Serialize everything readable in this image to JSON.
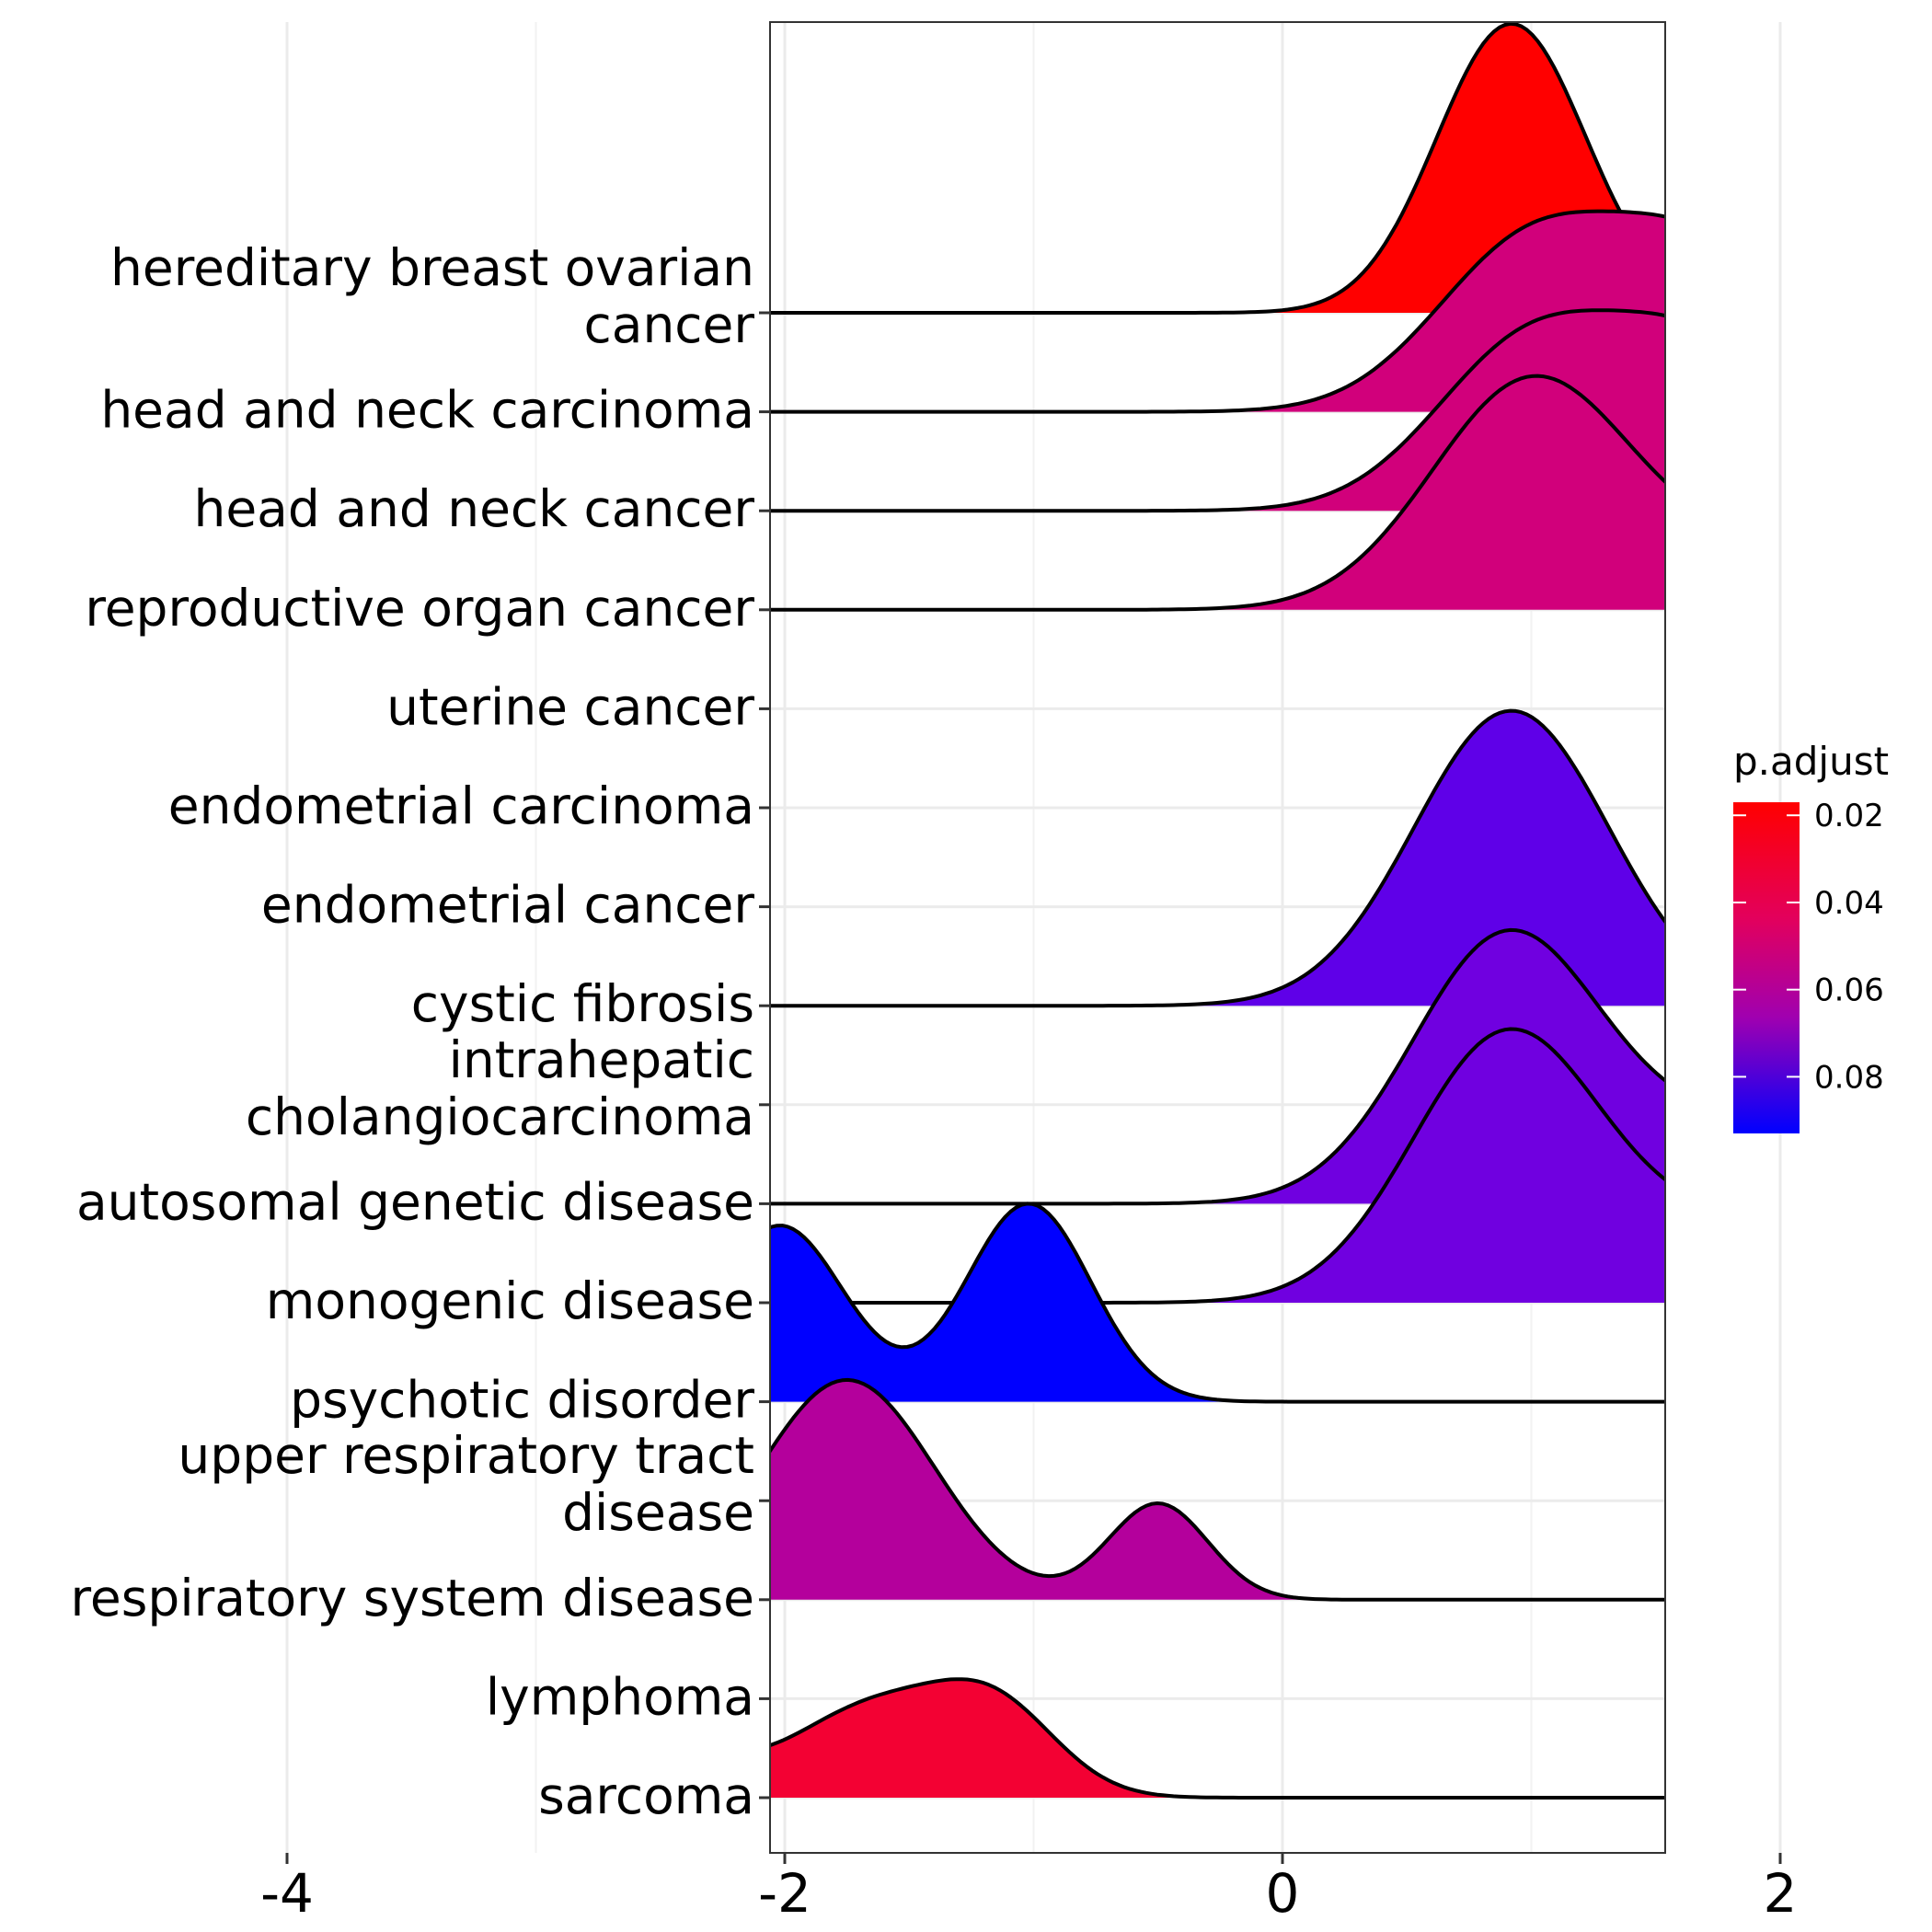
{
  "chart_data": {
    "type": "ridgeline",
    "title": "",
    "xlabel": "",
    "ylabel": "",
    "xlim": [
      -4,
      2
    ],
    "x_ticks": [
      -4,
      -2,
      0,
      2
    ],
    "x_tick_labels": [
      "-4",
      "-2",
      "0",
      "2"
    ],
    "grid": true,
    "categories": [
      "sarcoma",
      "lymphoma",
      "respiratory system disease",
      "upper respiratory tract disease",
      "psychotic disorder",
      "monogenic disease",
      "autosomal genetic disease",
      "intrahepatic cholangiocarcinoma",
      "cystic fibrosis",
      "endometrial cancer",
      "endometrial carcinoma",
      "uterine cancer",
      "reproductive organ cancer",
      "head and neck cancer",
      "head and neck carcinoma",
      "hereditary breast ovarian cancer"
    ],
    "category_lines": [
      [
        "sarcoma"
      ],
      [
        "lymphoma"
      ],
      [
        "respiratory system disease"
      ],
      [
        "upper respiratory tract",
        "disease"
      ],
      [
        "psychotic disorder"
      ],
      [
        "monogenic disease"
      ],
      [
        "autosomal genetic disease"
      ],
      [
        "intrahepatic",
        "cholangiocarcinoma"
      ],
      [
        "cystic fibrosis"
      ],
      [
        "endometrial cancer"
      ],
      [
        "endometrial carcinoma"
      ],
      [
        "uterine cancer"
      ],
      [
        "reproductive organ cancer"
      ],
      [
        "head and neck cancer"
      ],
      [
        "head and neck carcinoma"
      ],
      [
        "hereditary breast ovarian",
        "cancer"
      ]
    ],
    "x_range": [
      -3.8,
      2.75
    ],
    "series": [
      {
        "name": "sarcoma",
        "baseline_index": 0,
        "p_adjust": 0.03,
        "color": "#F30133",
        "peaks": [
          {
            "mu": -2.55,
            "sigma": 0.27,
            "h": 0.58
          },
          {
            "mu": -1.65,
            "sigma": 0.33,
            "h": 0.9
          },
          {
            "mu": -1.15,
            "sigma": 0.25,
            "h": 0.82
          }
        ]
      },
      {
        "name": "respiratory system disease",
        "baseline_index": 2,
        "p_adjust": 0.066,
        "color": "#B4009C",
        "peaks": [
          {
            "mu": -1.75,
            "sigma": 0.35,
            "h": 2.22
          },
          {
            "mu": -0.5,
            "sigma": 0.2,
            "h": 0.97
          }
        ]
      },
      {
        "name": "psychotic disorder",
        "baseline_index": 4,
        "p_adjust": 0.09,
        "color": "#0000FF",
        "peaks": [
          {
            "mu": -2.02,
            "sigma": 0.26,
            "h": 1.78
          },
          {
            "mu": -1.02,
            "sigma": 0.25,
            "h": 2.0
          }
        ]
      },
      {
        "name": "autosomal genetic disease",
        "baseline_index": 6,
        "p_adjust": 0.08,
        "color": "#7000E0",
        "peaks": [
          {
            "mu": 0.9,
            "sigma": 0.38,
            "h": 2.68
          },
          {
            "mu": 1.85,
            "sigma": 0.45,
            "h": 0.75
          }
        ]
      },
      {
        "name": "monogenic disease",
        "baseline_index": 5,
        "p_adjust": 0.08,
        "color": "#7000E0",
        "peaks": [
          {
            "mu": 0.9,
            "sigma": 0.38,
            "h": 2.68
          },
          {
            "mu": 1.85,
            "sigma": 0.45,
            "h": 0.75
          }
        ]
      },
      {
        "name": "cystic fibrosis",
        "baseline_index": 8,
        "p_adjust": 0.085,
        "color": "#5F00E8",
        "peaks": [
          {
            "mu": 0.92,
            "sigma": 0.39,
            "h": 2.98
          }
        ]
      },
      {
        "name": "reproductive organ cancer",
        "baseline_index": 12,
        "p_adjust": 0.055,
        "color": "#D1007B",
        "peaks": [
          {
            "mu": 1.0,
            "sigma": 0.4,
            "h": 2.3
          },
          {
            "mu": 1.95,
            "sigma": 0.45,
            "h": 0.55
          }
        ]
      },
      {
        "name": "head and neck cancer",
        "baseline_index": 13,
        "p_adjust": 0.055,
        "color": "#D1007B",
        "peaks": [
          {
            "mu": 1.0,
            "sigma": 0.38,
            "h": 1.7
          },
          {
            "mu": 1.7,
            "sigma": 0.35,
            "h": 1.5
          }
        ]
      },
      {
        "name": "head and neck carcinoma",
        "baseline_index": 14,
        "p_adjust": 0.055,
        "color": "#D1007B",
        "peaks": [
          {
            "mu": 1.0,
            "sigma": 0.38,
            "h": 1.7
          },
          {
            "mu": 1.7,
            "sigma": 0.35,
            "h": 1.5
          }
        ]
      },
      {
        "name": "hereditary breast ovarian cancer",
        "baseline_index": 15,
        "p_adjust": 0.017,
        "color": "#FF0000",
        "peaks": [
          {
            "mu": 0.92,
            "sigma": 0.3,
            "h": 2.92
          },
          {
            "mu": 1.95,
            "sigma": 0.22,
            "h": 0.45
          }
        ]
      }
    ],
    "legend": {
      "title": "p.adjust",
      "position": "right",
      "range": [
        0.017,
        0.093
      ],
      "colors": [
        "#FF0000",
        "#0000FF"
      ],
      "ticks": [
        0.02,
        0.04,
        0.06,
        0.08
      ],
      "tick_labels": [
        "0.02",
        "0.04",
        "0.06",
        "0.08"
      ]
    }
  }
}
